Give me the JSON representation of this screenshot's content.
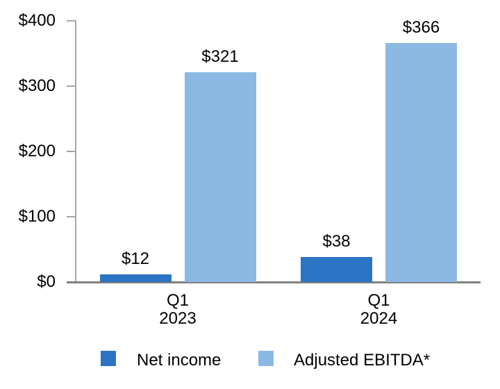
{
  "chart_data": {
    "type": "bar",
    "title": "",
    "xlabel": "",
    "ylabel": "",
    "categories": [
      {
        "line1": "Q1",
        "line2": "2023"
      },
      {
        "line1": "Q1",
        "line2": "2024"
      }
    ],
    "series": [
      {
        "name": "Net income",
        "color": "#2B74C4",
        "values": [
          12,
          38
        ],
        "data_labels": [
          "$12",
          "$38"
        ]
      },
      {
        "name": "Adjusted EBITDA*",
        "color": "#8CB8E4",
        "values": [
          321,
          366
        ],
        "data_labels": [
          "$321",
          "$366"
        ]
      }
    ],
    "yticks": [
      {
        "value": 0,
        "label": "$0"
      },
      {
        "value": 100,
        "label": "$100"
      },
      {
        "value": 200,
        "label": "$200"
      },
      {
        "value": 300,
        "label": "$300"
      },
      {
        "value": 400,
        "label": "$400"
      }
    ],
    "ylim": [
      0,
      400
    ],
    "grid": false,
    "legend_position": "bottom",
    "colors": {
      "y_axis_line": "#A6A6A6",
      "x_axis_line": "#808080",
      "text": "#000000",
      "background": "#FFFFFF"
    }
  }
}
